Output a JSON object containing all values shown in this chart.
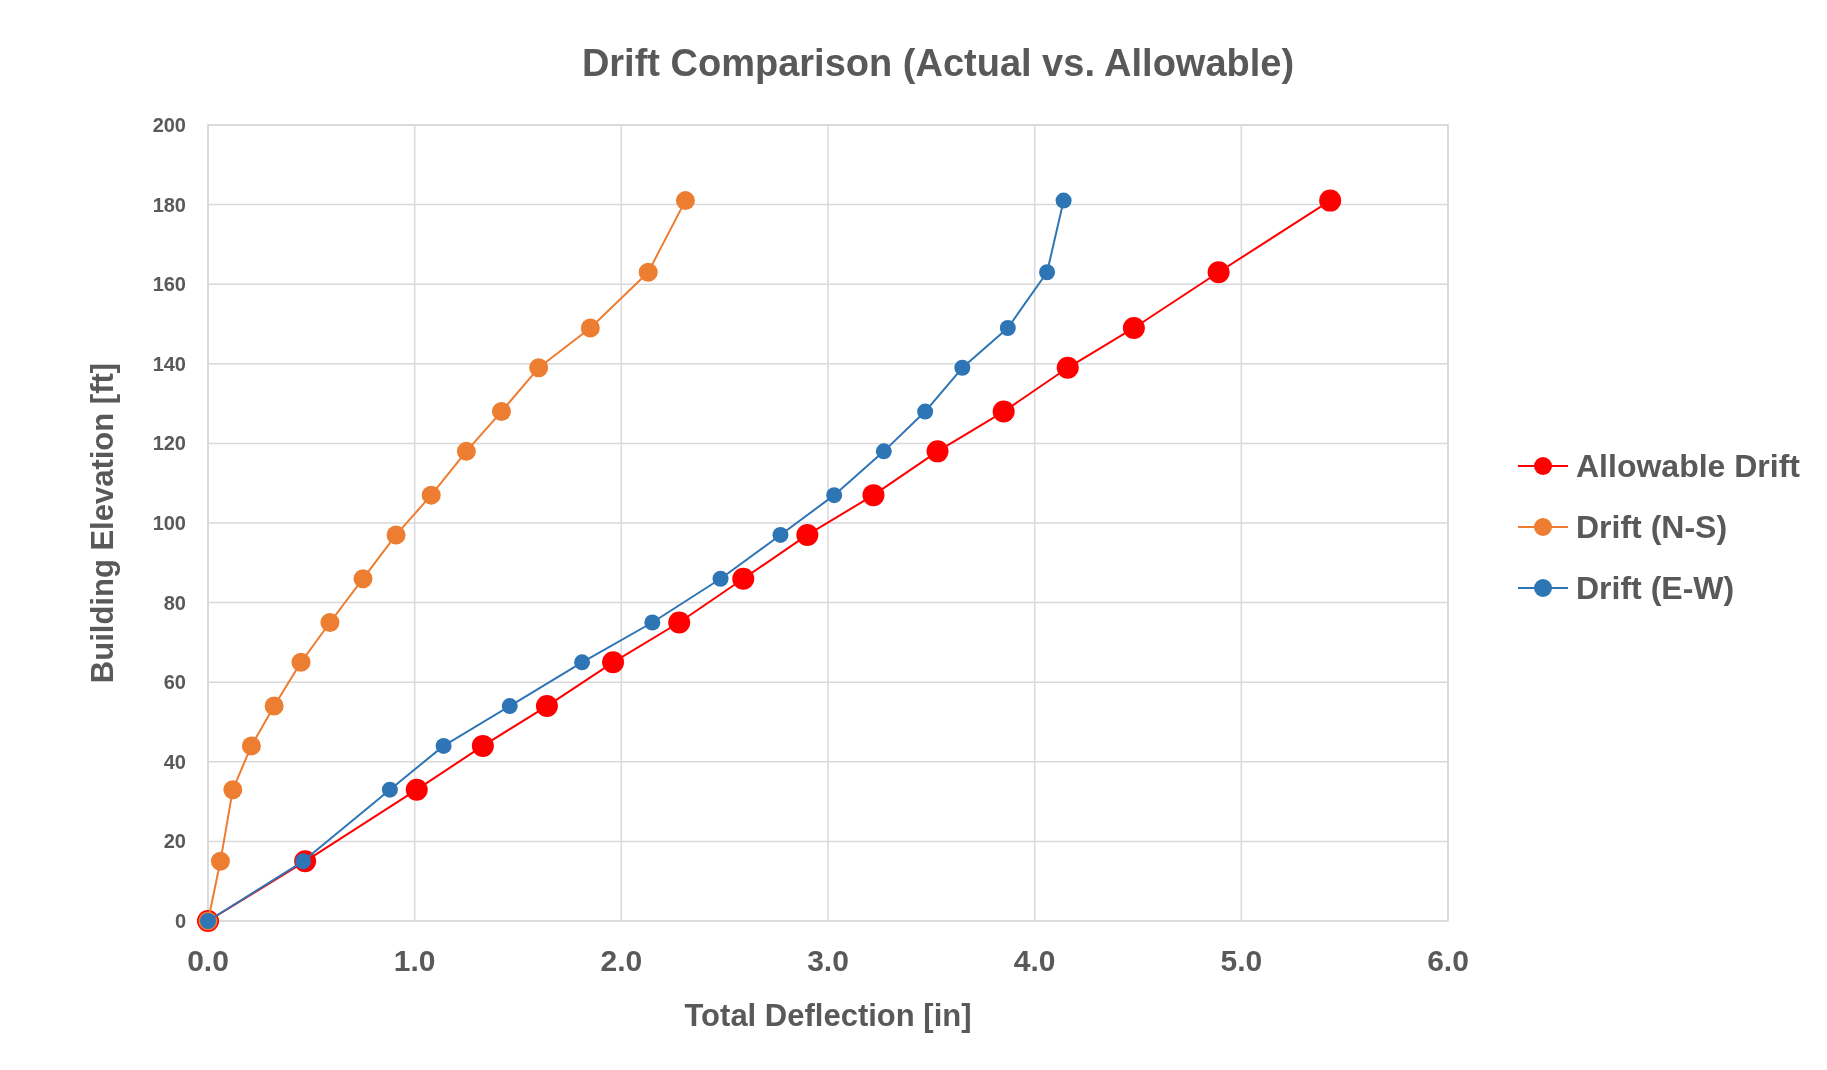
{
  "chart_data": {
    "type": "line",
    "title": "Drift Comparison (Actual vs. Allowable)",
    "xlabel": "Total Deflection [in]",
    "ylabel": "Building Elevation [ft]",
    "xlim": [
      0,
      6
    ],
    "xticks": [
      {
        "value": 0,
        "label": "0.0"
      },
      {
        "value": 1,
        "label": "1.0"
      },
      {
        "value": 2,
        "label": "2.0"
      },
      {
        "value": 3,
        "label": "3.0"
      },
      {
        "value": 4,
        "label": "4.0"
      },
      {
        "value": 5,
        "label": "5.0"
      },
      {
        "value": 6,
        "label": "6.0"
      }
    ],
    "ylim": [
      0,
      200
    ],
    "yticks": [
      0,
      20,
      40,
      60,
      80,
      100,
      120,
      140,
      160,
      180,
      200
    ],
    "grid": true,
    "legend": "right",
    "marker": "circle",
    "line_style": "solid",
    "series": [
      {
        "name": "Allowable Drift",
        "color": "#ff0000",
        "x": [
          0,
          0.47,
          1.01,
          1.33,
          1.64,
          1.96,
          2.28,
          2.59,
          2.9,
          3.22,
          3.53,
          3.85,
          4.16,
          4.48,
          4.89,
          5.43
        ],
        "values": [
          0,
          15,
          33,
          44,
          54,
          65,
          75,
          86,
          97,
          107,
          118,
          128,
          139,
          149,
          163,
          181
        ]
      },
      {
        "name": "Drift (N-S)",
        "color": "#ed7d31",
        "x": [
          0,
          0.06,
          0.12,
          0.21,
          0.32,
          0.45,
          0.59,
          0.75,
          0.91,
          1.08,
          1.25,
          1.42,
          1.6,
          1.85,
          2.13,
          2.31
        ],
        "values": [
          0,
          15,
          33,
          44,
          54,
          65,
          75,
          86,
          97,
          107,
          118,
          128,
          139,
          149,
          163,
          181
        ]
      },
      {
        "name": "Drift (E-W)",
        "color": "#2e75b6",
        "x": [
          0,
          0.46,
          0.88,
          1.14,
          1.46,
          1.81,
          2.15,
          2.48,
          2.77,
          3.03,
          3.27,
          3.47,
          3.65,
          3.87,
          4.06,
          4.14
        ],
        "values": [
          0,
          15,
          33,
          44,
          54,
          65,
          75,
          86,
          97,
          107,
          118,
          128,
          139,
          149,
          163,
          181
        ]
      }
    ]
  }
}
